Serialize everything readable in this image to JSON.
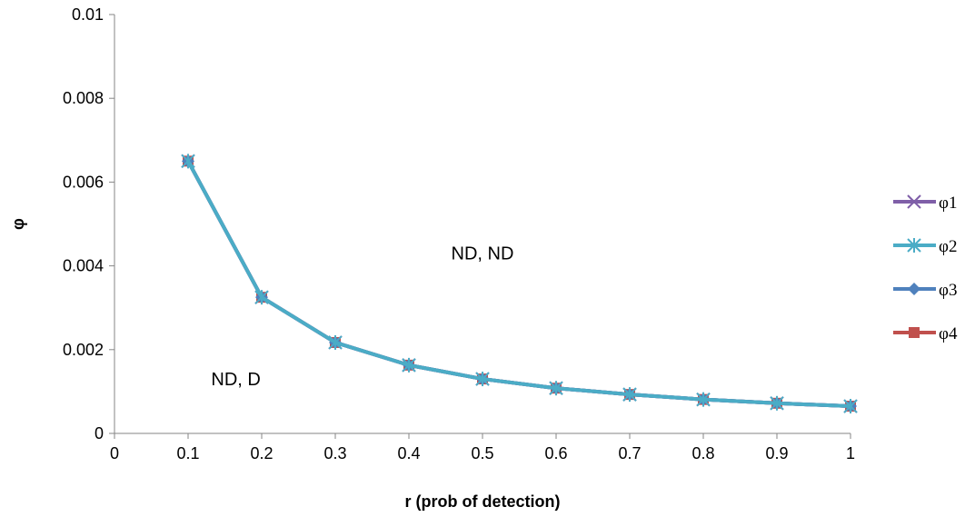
{
  "chart_data": {
    "type": "line",
    "xlabel": "r (prob of detection)",
    "ylabel": "φ",
    "xlim": [
      0,
      1
    ],
    "ylim": [
      0,
      0.01
    ],
    "x_ticks": [
      "0",
      "0.1",
      "0.2",
      "0.3",
      "0.4",
      "0.5",
      "0.6",
      "0.7",
      "0.8",
      "0.9",
      "1"
    ],
    "y_ticks": [
      "0",
      "0.002",
      "0.004",
      "0.006",
      "0.008",
      "0.01"
    ],
    "x": [
      0.1,
      0.2,
      0.3,
      0.4,
      0.5,
      0.6,
      0.7,
      0.8,
      0.9,
      1.0
    ],
    "series": [
      {
        "name": "φ1",
        "marker": "x",
        "color": "#7f5fa8",
        "values": [
          0.0065,
          0.00325,
          0.00217,
          0.00163,
          0.0013,
          0.00108,
          0.00093,
          0.00081,
          0.00072,
          0.00065
        ]
      },
      {
        "name": "φ2",
        "marker": "asterisk",
        "color": "#4bacc6",
        "values": [
          0.0065,
          0.00325,
          0.00217,
          0.00163,
          0.0013,
          0.00108,
          0.00093,
          0.00081,
          0.00072,
          0.00065
        ]
      },
      {
        "name": "φ3",
        "marker": "diamond",
        "color": "#4f81bd",
        "values": [
          0.0065,
          0.00325,
          0.00217,
          0.00163,
          0.0013,
          0.00108,
          0.00093,
          0.00081,
          0.00072,
          0.00065
        ]
      },
      {
        "name": "φ4",
        "marker": "square",
        "color": "#c0504d",
        "values": [
          0.0065,
          0.00325,
          0.00217,
          0.00163,
          0.0013,
          0.00108,
          0.00093,
          0.00081,
          0.00072,
          0.00065
        ]
      }
    ],
    "annotations": [
      {
        "text": "ND, ND",
        "x": 0.5,
        "y": 0.00415
      },
      {
        "text": "ND, D",
        "x": 0.165,
        "y": 0.00115
      }
    ],
    "legend_position": "right",
    "grid": false
  }
}
